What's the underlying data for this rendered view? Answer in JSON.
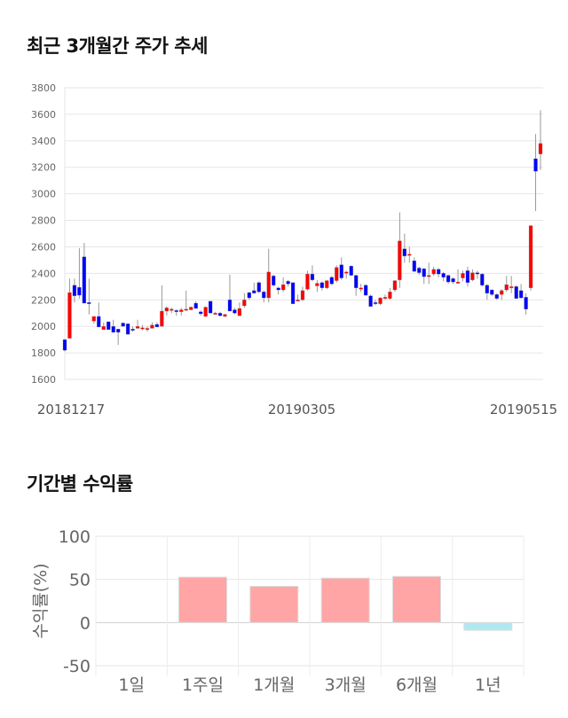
{
  "section1": {
    "title": "최근 3개월간 주가 추세"
  },
  "section2": {
    "title": "기간별 수익률"
  },
  "chart_data": [
    {
      "type": "candlestick",
      "ylim": [
        1600,
        3800
      ],
      "yticks": [
        3800,
        3600,
        3400,
        3200,
        3000,
        2800,
        2600,
        2400,
        2200,
        2000,
        1800,
        1600
      ],
      "xtick_labels": [
        "20181217",
        "20190305",
        "20190515"
      ],
      "grid": true,
      "colors": {
        "up": "#ff0000",
        "down": "#0000ff",
        "wick": "#999999"
      },
      "ohlc": [
        [
          1900,
          1905,
          1810,
          1820
        ],
        [
          1910,
          2360,
          1910,
          2255
        ],
        [
          2310,
          2360,
          2180,
          2230
        ],
        [
          2295,
          2590,
          2210,
          2235
        ],
        [
          2525,
          2630,
          2175,
          2175
        ],
        [
          2180,
          2360,
          2090,
          2175
        ],
        [
          2040,
          2075,
          2020,
          2075
        ],
        [
          2075,
          2180,
          1995,
          1995
        ],
        [
          1975,
          2030,
          1975,
          2000
        ],
        [
          2035,
          2035,
          1975,
          1975
        ],
        [
          2000,
          2050,
          1950,
          1955
        ],
        [
          1980,
          1980,
          1860,
          1955
        ],
        [
          2025,
          2030,
          2000,
          2000
        ],
        [
          2020,
          2020,
          1940,
          1940
        ],
        [
          1980,
          2000,
          1960,
          1975
        ],
        [
          1985,
          2050,
          1980,
          2000
        ],
        [
          1980,
          2010,
          1970,
          1990
        ],
        [
          1980,
          2000,
          1960,
          1985
        ],
        [
          1985,
          2030,
          1985,
          2010
        ],
        [
          2015,
          2030,
          1995,
          1995
        ],
        [
          2000,
          2310,
          2000,
          2115
        ],
        [
          2115,
          2150,
          2080,
          2140
        ],
        [
          2125,
          2140,
          2100,
          2130
        ],
        [
          2120,
          2130,
          2080,
          2110
        ],
        [
          2110,
          2140,
          2080,
          2125
        ],
        [
          2125,
          2270,
          2120,
          2130
        ],
        [
          2125,
          2150,
          2120,
          2145
        ],
        [
          2175,
          2190,
          2135,
          2135
        ],
        [
          2110,
          2120,
          2080,
          2095
        ],
        [
          2075,
          2150,
          2070,
          2145
        ],
        [
          2190,
          2190,
          2100,
          2100
        ],
        [
          2100,
          2110,
          2090,
          2100
        ],
        [
          2100,
          2110,
          2075,
          2080
        ],
        [
          2075,
          2095,
          2070,
          2090
        ],
        [
          2200,
          2390,
          2115,
          2115
        ],
        [
          2125,
          2140,
          2090,
          2100
        ],
        [
          2080,
          2180,
          2080,
          2135
        ],
        [
          2155,
          2250,
          2140,
          2200
        ],
        [
          2255,
          2260,
          2200,
          2215
        ],
        [
          2270,
          2330,
          2250,
          2250
        ],
        [
          2330,
          2340,
          2250,
          2260
        ],
        [
          2260,
          2270,
          2180,
          2215
        ],
        [
          2215,
          2585,
          2180,
          2410
        ],
        [
          2380,
          2390,
          2300,
          2310
        ],
        [
          2290,
          2300,
          2240,
          2275
        ],
        [
          2275,
          2370,
          2260,
          2315
        ],
        [
          2340,
          2350,
          2300,
          2320
        ],
        [
          2330,
          2330,
          2170,
          2170
        ],
        [
          2200,
          2240,
          2190,
          2200
        ],
        [
          2200,
          2300,
          2190,
          2270
        ],
        [
          2280,
          2420,
          2270,
          2395
        ],
        [
          2395,
          2460,
          2340,
          2350
        ],
        [
          2305,
          2350,
          2260,
          2325
        ],
        [
          2330,
          2340,
          2270,
          2290
        ],
        [
          2290,
          2350,
          2280,
          2345
        ],
        [
          2370,
          2380,
          2310,
          2320
        ],
        [
          2345,
          2460,
          2330,
          2445
        ],
        [
          2465,
          2520,
          2350,
          2365
        ],
        [
          2400,
          2420,
          2360,
          2410
        ],
        [
          2455,
          2460,
          2380,
          2385
        ],
        [
          2385,
          2390,
          2230,
          2290
        ],
        [
          2290,
          2320,
          2260,
          2290
        ],
        [
          2310,
          2320,
          2230,
          2235
        ],
        [
          2230,
          2240,
          2150,
          2150
        ],
        [
          2180,
          2200,
          2160,
          2175
        ],
        [
          2170,
          2220,
          2160,
          2215
        ],
        [
          2220,
          2240,
          2200,
          2220
        ],
        [
          2210,
          2290,
          2200,
          2260
        ],
        [
          2275,
          2350,
          2260,
          2345
        ],
        [
          2350,
          2860,
          2290,
          2645
        ],
        [
          2585,
          2700,
          2480,
          2530
        ],
        [
          2545,
          2600,
          2480,
          2545
        ],
        [
          2495,
          2520,
          2410,
          2415
        ],
        [
          2440,
          2450,
          2390,
          2405
        ],
        [
          2435,
          2440,
          2320,
          2375
        ],
        [
          2385,
          2480,
          2320,
          2385
        ],
        [
          2395,
          2450,
          2380,
          2430
        ],
        [
          2430,
          2440,
          2370,
          2395
        ],
        [
          2400,
          2410,
          2340,
          2370
        ],
        [
          2385,
          2390,
          2320,
          2335
        ],
        [
          2360,
          2370,
          2320,
          2335
        ],
        [
          2335,
          2430,
          2320,
          2335
        ],
        [
          2365,
          2420,
          2340,
          2400
        ],
        [
          2420,
          2450,
          2300,
          2330
        ],
        [
          2350,
          2430,
          2340,
          2405
        ],
        [
          2405,
          2420,
          2360,
          2395
        ],
        [
          2395,
          2400,
          2300,
          2310
        ],
        [
          2310,
          2320,
          2200,
          2250
        ],
        [
          2275,
          2280,
          2230,
          2240
        ],
        [
          2240,
          2250,
          2200,
          2210
        ],
        [
          2240,
          2280,
          2200,
          2270
        ],
        [
          2275,
          2380,
          2260,
          2315
        ],
        [
          2290,
          2380,
          2250,
          2300
        ],
        [
          2300,
          2310,
          2210,
          2210
        ],
        [
          2270,
          2320,
          2210,
          2215
        ],
        [
          2220,
          2250,
          2090,
          2130
        ],
        [
          2290,
          2760,
          2270,
          2760
        ],
        [
          3265,
          3450,
          2870,
          3170
        ],
        [
          3300,
          3630,
          3180,
          3380
        ]
      ]
    },
    {
      "type": "bar",
      "categories": [
        "1일",
        "1주일",
        "1개월",
        "3개월",
        "6개월",
        "1년"
      ],
      "values": [
        0,
        52.6,
        42,
        51.5,
        53.5,
        -9
      ],
      "ylabel": "수익률(%)",
      "ylim": [
        -50,
        100
      ],
      "yticks": [
        100,
        50,
        0,
        -50
      ],
      "grid": true,
      "colors": {
        "positive": "#ffa5a5",
        "negative": "#b0e8f0"
      }
    }
  ]
}
